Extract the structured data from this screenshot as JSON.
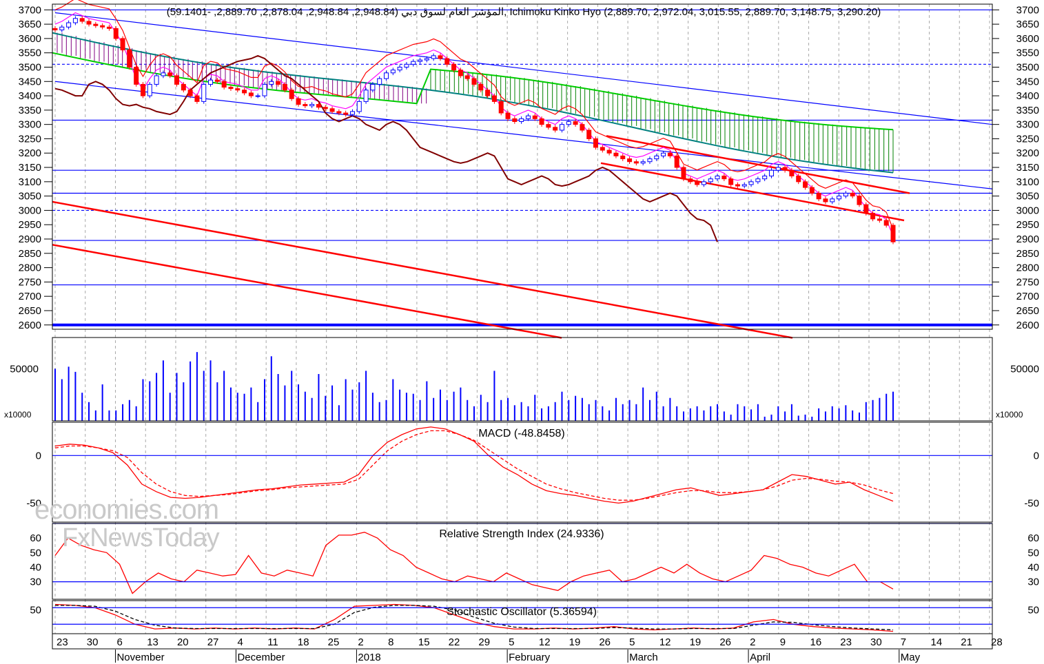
{
  "header": {
    "price_line": "المؤشر العام لسوق دبي (2,948.84, 2,948.84, 2,878.04, 2,889.70, -59.1401), Ichimoku Kinko Hyo (2,889.70, 2,972.04, 3,015.55, 2,889.70, 3,148.75, 3,290.20)"
  },
  "watermark": {
    "line1": "economies.com",
    "line2": "FxNewsToday"
  },
  "panels": {
    "volume": {
      "multiplier_left": "x10000",
      "multiplier_right": "x10000"
    },
    "macd": {
      "title": "MACD (-48.8458)"
    },
    "rsi": {
      "title": "Relative Strength Index (24.9336)"
    },
    "stoch": {
      "title": "Stochastic Oscillator (5.36594)"
    }
  },
  "colors": {
    "bull_candle": "#0000ff",
    "bear_candle": "#ff0000",
    "trend_line": "#ff0000",
    "channel_line": "#0000ff",
    "level_line": "#0000ff",
    "support_line": "#0000ff",
    "kumo_bull": "#008000",
    "kumo_bear": "#800080",
    "span_a": "#00cc00",
    "span_b": "#008080",
    "tenkan": "#ff00ff",
    "kijun": "#ff0000",
    "chikou": "#800000",
    "volume": "#0000ff",
    "indicator": "#ff0000",
    "signal": "#ff0000",
    "stoch_signal": "#000000"
  },
  "chart_data": [
    {
      "type": "candlestick",
      "title": "المؤشر العام لسوق دبي",
      "ylim": [
        2585,
        3720
      ],
      "y_ticks": [
        2600,
        2650,
        2700,
        2750,
        2800,
        2850,
        2900,
        2950,
        3000,
        3050,
        3100,
        3150,
        3200,
        3250,
        3300,
        3350,
        3400,
        3450,
        3500,
        3550,
        3600,
        3650,
        3700
      ],
      "x_tick_labels": [
        "23",
        "30",
        "6",
        "13",
        "20",
        "27",
        "4",
        "11",
        "18",
        "25",
        "2",
        "8",
        "15",
        "22",
        "29",
        "5",
        "12",
        "19",
        "26",
        "5",
        "12",
        "19",
        "26",
        "2",
        "9",
        "16",
        "23",
        "30",
        "7",
        "14",
        "21",
        "28"
      ],
      "month_labels": [
        "November",
        "December",
        "2018",
        "February",
        "March",
        "April",
        "May"
      ],
      "last_ohlc": {
        "open": 2948.84,
        "high": 2948.84,
        "low": 2878.04,
        "close": 2889.7,
        "change": -59.1401
      },
      "ichimoku": {
        "values": [
          2889.7,
          2972.04,
          3015.55,
          2889.7,
          3148.75,
          3290.2
        ]
      },
      "horizontal_levels": [
        3700,
        3510,
        3315,
        3140,
        3060,
        3000,
        2895,
        2740,
        2600
      ],
      "close_series": [
        3630,
        3640,
        3655,
        3670,
        3660,
        3650,
        3645,
        3640,
        3635,
        3600,
        3560,
        3500,
        3440,
        3400,
        3440,
        3470,
        3480,
        3470,
        3440,
        3420,
        3400,
        3380,
        3440,
        3455,
        3450,
        3430,
        3425,
        3420,
        3410,
        3400,
        3400,
        3440,
        3450,
        3440,
        3420,
        3390,
        3370,
        3365,
        3370,
        3360,
        3355,
        3345,
        3340,
        3335,
        3345,
        3380,
        3420,
        3440,
        3460,
        3480,
        3490,
        3500,
        3510,
        3520,
        3525,
        3530,
        3540,
        3530,
        3510,
        3490,
        3470,
        3460,
        3440,
        3420,
        3400,
        3380,
        3340,
        3320,
        3310,
        3320,
        3330,
        3320,
        3300,
        3290,
        3280,
        3300,
        3310,
        3300,
        3280,
        3250,
        3220,
        3210,
        3200,
        3190,
        3180,
        3170,
        3165,
        3170,
        3180,
        3190,
        3200,
        3190,
        3150,
        3110,
        3100,
        3090,
        3100,
        3110,
        3120,
        3110,
        3090,
        3085,
        3090,
        3100,
        3110,
        3120,
        3140,
        3150,
        3140,
        3120,
        3100,
        3080,
        3060,
        3040,
        3030,
        3040,
        3050,
        3060,
        3050,
        3020,
        2990,
        2970,
        2965,
        2948,
        2890
      ]
    },
    {
      "type": "bar",
      "title": "Volume",
      "unit": "x10000",
      "ylim": [
        0,
        80000
      ],
      "y_ticks": [
        50000
      ],
      "values": [
        50000,
        40000,
        52000,
        47000,
        27000,
        18000,
        10000,
        35000,
        10000,
        10000,
        16000,
        20000,
        14000,
        40000,
        38000,
        46000,
        58000,
        27000,
        46000,
        37000,
        57000,
        66000,
        48000,
        58000,
        37000,
        48000,
        32000,
        27000,
        26000,
        32000,
        18000,
        40000,
        62000,
        45000,
        34000,
        48000,
        35000,
        28000,
        22000,
        45000,
        24000,
        34000,
        15000,
        40000,
        30000,
        37000,
        48000,
        27000,
        18000,
        20000,
        40000,
        30000,
        27000,
        26000,
        20000,
        38000,
        22000,
        30000,
        20000,
        28000,
        32000,
        20000,
        14000,
        25000,
        18000,
        48000,
        20000,
        22000,
        15000,
        18000,
        14000,
        25000,
        12000,
        14000,
        18000,
        28000,
        20000,
        24000,
        22000,
        16000,
        20000,
        14000,
        10000,
        22000,
        16000,
        20000,
        16000,
        32000,
        20000,
        28000,
        14000,
        22000,
        14000,
        9000,
        12000,
        14000,
        10000,
        14000,
        16000,
        9000,
        6000,
        16000,
        14000,
        11000,
        16000,
        4000,
        6000,
        14000,
        9000,
        16000,
        5000,
        6000,
        4000,
        12000,
        9000,
        14000,
        12000,
        15000,
        10000,
        8000,
        18000,
        20000,
        22000,
        26000,
        28000
      ]
    },
    {
      "type": "line",
      "title": "MACD (-48.8458)",
      "ylim": [
        -70,
        35
      ],
      "y_ticks": [
        -50,
        0
      ],
      "series": [
        {
          "line": "solid",
          "values": [
            10,
            12,
            11,
            8,
            3,
            -10,
            -30,
            -38,
            -44,
            -45,
            -44,
            -42,
            -40,
            -38,
            -36,
            -35,
            -33,
            -31,
            -30,
            -29,
            -28,
            -20,
            0,
            14,
            22,
            28,
            30,
            28,
            22,
            15,
            0,
            -12,
            -20,
            -30,
            -37,
            -40,
            -42,
            -45,
            -48,
            -50,
            -48,
            -44,
            -40,
            -36,
            -34,
            -38,
            -42,
            -40,
            -38,
            -36,
            -28,
            -20,
            -22,
            -26,
            -30,
            -28,
            -36,
            -42,
            -48
          ]
        },
        {
          "line": "dashed",
          "values": [
            8,
            10,
            10,
            8,
            5,
            -2,
            -18,
            -30,
            -38,
            -42,
            -43,
            -42,
            -41,
            -39,
            -37,
            -36,
            -34,
            -33,
            -32,
            -31,
            -30,
            -25,
            -10,
            5,
            15,
            22,
            26,
            26,
            22,
            16,
            6,
            -4,
            -14,
            -22,
            -30,
            -35,
            -39,
            -42,
            -45,
            -47,
            -47,
            -45,
            -42,
            -39,
            -37,
            -37,
            -39,
            -39,
            -38,
            -36,
            -32,
            -26,
            -24,
            -25,
            -27,
            -28,
            -31,
            -36,
            -40
          ]
        }
      ]
    },
    {
      "type": "line",
      "title": "Relative Strength Index (24.9336)",
      "ylim": [
        18,
        70
      ],
      "y_ticks": [
        30,
        40,
        50,
        60
      ],
      "series": [
        {
          "values": [
            48,
            60,
            55,
            52,
            50,
            42,
            22,
            30,
            36,
            32,
            30,
            38,
            36,
            34,
            35,
            48,
            36,
            34,
            38,
            36,
            34,
            55,
            62,
            62,
            64,
            60,
            52,
            48,
            40,
            36,
            32,
            30,
            34,
            32,
            30,
            36,
            32,
            28,
            26,
            24,
            30,
            34,
            36,
            38,
            30,
            32,
            36,
            40,
            36,
            42,
            36,
            32,
            30,
            34,
            38,
            48,
            46,
            42,
            40,
            36,
            34,
            38,
            42,
            30,
            30,
            25
          ]
        }
      ]
    },
    {
      "type": "line",
      "title": "Stochastic Oscillator (5.36594)",
      "ylim": [
        0,
        70
      ],
      "y_ticks": [
        50
      ],
      "series": [
        {
          "line": "solid",
          "values": [
            62,
            60,
            55,
            40,
            20,
            10,
            12,
            10,
            12,
            10,
            12,
            10,
            12,
            10,
            30,
            58,
            60,
            62,
            60,
            55,
            40,
            25,
            15,
            10,
            10,
            12,
            10,
            12,
            15,
            10,
            8,
            10,
            12,
            10,
            12,
            25,
            30,
            20,
            15,
            12,
            10,
            8,
            5
          ]
        },
        {
          "line": "dashed",
          "values": [
            60,
            60,
            58,
            48,
            30,
            18,
            12,
            11,
            11,
            11,
            11,
            11,
            11,
            11,
            20,
            45,
            56,
            60,
            60,
            58,
            50,
            35,
            22,
            14,
            11,
            11,
            11,
            11,
            13,
            12,
            10,
            10,
            11,
            11,
            11,
            18,
            25,
            24,
            19,
            15,
            12,
            10,
            8
          ]
        }
      ]
    }
  ]
}
